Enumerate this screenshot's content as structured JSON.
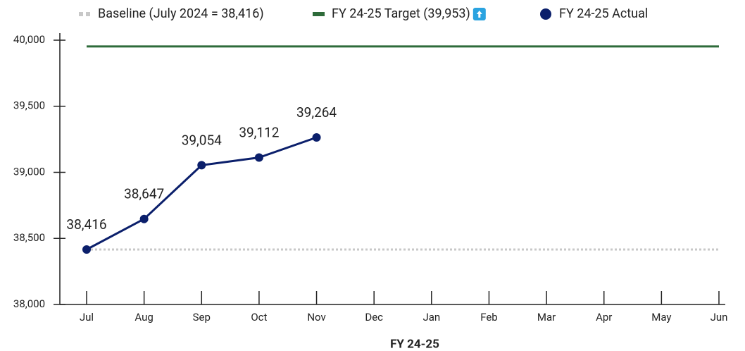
{
  "chart_data": {
    "type": "line",
    "x_label": "FY 24-25",
    "categories": [
      "Jul",
      "Aug",
      "Sep",
      "Oct",
      "Nov",
      "Dec",
      "Jan",
      "Feb",
      "Mar",
      "Apr",
      "May",
      "Jun"
    ],
    "series": [
      {
        "name": "Baseline (July 2024 = 38,416)",
        "color": "#c8c8c8",
        "style": "dotted",
        "values": [
          38416,
          38416,
          38416,
          38416,
          38416,
          38416,
          38416,
          38416,
          38416,
          38416,
          38416,
          38416
        ]
      },
      {
        "name": "FY 24-25 Target (39,953)",
        "color": "#2e6b3a",
        "style": "solid",
        "values": [
          39953,
          39953,
          39953,
          39953,
          39953,
          39953,
          39953,
          39953,
          39953,
          39953,
          39953,
          39953
        ]
      },
      {
        "name": "FY 24-25 Actual",
        "color": "#0b1f6b",
        "style": "markers",
        "values": [
          38416,
          38647,
          39054,
          39112,
          39264,
          null,
          null,
          null,
          null,
          null,
          null,
          null
        ],
        "value_labels": [
          "38,416",
          "38,647",
          "39,054",
          "39,112",
          "39,264",
          null,
          null,
          null,
          null,
          null,
          null,
          null
        ]
      }
    ],
    "ylim": [
      38000,
      40000
    ],
    "yticks": [
      {
        "value": 38000,
        "label": "38,000"
      },
      {
        "value": 38500,
        "label": "38,500"
      },
      {
        "value": 39000,
        "label": "39,000"
      },
      {
        "value": 39500,
        "label": "39,500"
      },
      {
        "value": 40000,
        "label": "40,000"
      }
    ],
    "grid": false
  }
}
